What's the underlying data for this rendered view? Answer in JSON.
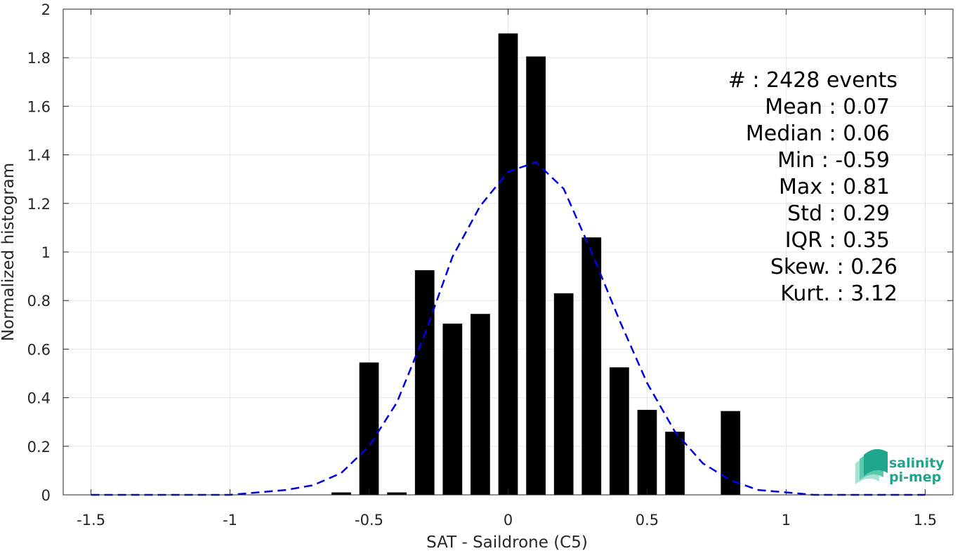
{
  "chart_data": {
    "type": "bar",
    "title": "",
    "xlabel": "SAT - Saildrone (C5)",
    "ylabel": "Normalized histogram",
    "xlim": [
      -1.6,
      1.6
    ],
    "ylim": [
      0,
      2
    ],
    "bar_width": 0.07,
    "grid": true,
    "x_ticks": [
      "-1.5",
      "-1",
      "-0.5",
      "0",
      "0.5",
      "1",
      "1.5"
    ],
    "x_tick_values": [
      -1.5,
      -1,
      -0.5,
      0,
      0.5,
      1,
      1.5
    ],
    "y_ticks": [
      "0",
      "0.2",
      "0.4",
      "0.6",
      "0.8",
      "1",
      "1.2",
      "1.4",
      "1.6",
      "1.8",
      "2"
    ],
    "y_tick_values": [
      0,
      0.2,
      0.4,
      0.6,
      0.8,
      1.0,
      1.2,
      1.4,
      1.6,
      1.8,
      2.0
    ],
    "bars": {
      "color": "#000000",
      "x": [
        -0.6,
        -0.5,
        -0.4,
        -0.3,
        -0.2,
        -0.1,
        0.0,
        0.1,
        0.2,
        0.3,
        0.4,
        0.5,
        0.6,
        0.8
      ],
      "values": [
        0.01,
        0.545,
        0.01,
        0.925,
        0.705,
        0.745,
        1.9,
        1.805,
        0.83,
        1.06,
        0.525,
        0.35,
        0.26,
        0.345
      ]
    },
    "fit_curve": {
      "style": "dashed",
      "color": "#0000e6",
      "x": [
        -1.5,
        -1.4,
        -1.3,
        -1.2,
        -1.1,
        -1.0,
        -0.9,
        -0.8,
        -0.7,
        -0.6,
        -0.5,
        -0.4,
        -0.3,
        -0.2,
        -0.1,
        0.0,
        0.1,
        0.2,
        0.3,
        0.4,
        0.5,
        0.6,
        0.7,
        0.8,
        0.9,
        1.0,
        1.1,
        1.2,
        1.3,
        1.4,
        1.5
      ],
      "y": [
        0.0,
        0.0,
        0.0,
        0.0,
        0.0,
        0.0,
        0.01,
        0.02,
        0.04,
        0.09,
        0.2,
        0.38,
        0.66,
        0.98,
        1.19,
        1.33,
        1.37,
        1.26,
        1.0,
        0.72,
        0.46,
        0.26,
        0.13,
        0.06,
        0.02,
        0.01,
        0.0,
        0.0,
        0.0,
        0.0,
        0.0
      ]
    },
    "stats": [
      "#  : 2428 events",
      "Mean : 0.07",
      "Median : 0.06",
      "Min : -0.59",
      "Max : 0.81",
      "Std : 0.29",
      "IQR : 0.35",
      "Skew. : 0.26",
      "Kurt. : 3.12"
    ]
  },
  "logo": {
    "line1": "salinity",
    "line2": "pi-mep",
    "color": "#1fa58c"
  }
}
